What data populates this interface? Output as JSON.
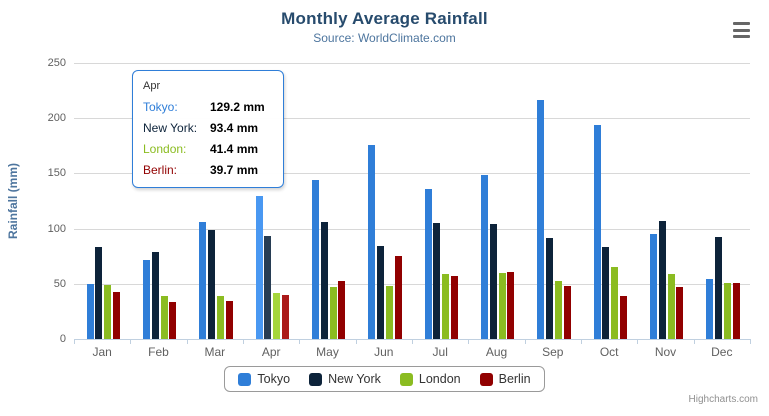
{
  "title": "Monthly Average Rainfall",
  "subtitle": "Source: WorldClimate.com",
  "credit": "Highcharts.com",
  "export_menu_icon": "hamburger-icon",
  "chart_data": {
    "type": "bar",
    "title": "Monthly Average Rainfall",
    "subtitle": "Source: WorldClimate.com",
    "xlabel": "",
    "ylabel": "Rainfall (mm)",
    "ylim": [
      0,
      250
    ],
    "y_ticks": [
      0,
      50,
      100,
      150,
      200,
      250
    ],
    "grid": "on",
    "legend_position": "bottom",
    "hovered_category": "Apr",
    "categories": [
      "Jan",
      "Feb",
      "Mar",
      "Apr",
      "May",
      "Jun",
      "Jul",
      "Aug",
      "Sep",
      "Oct",
      "Nov",
      "Dec"
    ],
    "series": [
      {
        "name": "Tokyo",
        "color": "#2f7ed8",
        "hover_color": "#4998f2",
        "values": [
          49.9,
          71.5,
          106.4,
          129.2,
          144.0,
          176.0,
          135.6,
          148.5,
          216.4,
          194.1,
          95.6,
          54.4
        ]
      },
      {
        "name": "New York",
        "color": "#0d233a",
        "hover_color": "#273d54",
        "values": [
          83.6,
          78.8,
          98.5,
          93.4,
          106.0,
          84.5,
          105.0,
          104.3,
          91.2,
          83.5,
          106.6,
          92.3
        ]
      },
      {
        "name": "London",
        "color": "#8bbc21",
        "hover_color": "#a5d63b",
        "values": [
          48.9,
          38.8,
          39.3,
          41.4,
          47.0,
          48.3,
          59.0,
          59.6,
          52.4,
          65.2,
          59.3,
          51.2
        ]
      },
      {
        "name": "Berlin",
        "color": "#910000",
        "hover_color": "#ab1a1a",
        "values": [
          42.4,
          33.2,
          34.5,
          39.7,
          52.6,
          75.5,
          57.4,
          60.4,
          47.6,
          39.1,
          46.8,
          51.1
        ]
      }
    ]
  },
  "tooltip": {
    "header": "Apr",
    "border_color": "#2f7ed8",
    "rows": [
      {
        "label": "Tokyo:",
        "value": "129.2 mm",
        "color": "#2f7ed8"
      },
      {
        "label": "New York:",
        "value": "93.4 mm",
        "color": "#0d233a"
      },
      {
        "label": "London:",
        "value": "41.4 mm",
        "color": "#8bbc21"
      },
      {
        "label": "Berlin:",
        "value": "39.7 mm",
        "color": "#910000"
      }
    ]
  },
  "legend": {
    "items": [
      {
        "label": "Tokyo",
        "color": "#2f7ed8"
      },
      {
        "label": "New York",
        "color": "#0d233a"
      },
      {
        "label": "London",
        "color": "#8bbc21"
      },
      {
        "label": "Berlin",
        "color": "#910000"
      }
    ]
  },
  "colors": {
    "title": "#274b6d",
    "subtitle": "#4d759e",
    "axis_title": "#4d759e",
    "axis_labels": "#606060",
    "grid_line": "#d8d8d8",
    "axis_line": "#c0d0e0",
    "legend_border": "#9a9a9a",
    "credit": "#909090",
    "export_icon": "#666666",
    "background": "#ffffff"
  }
}
